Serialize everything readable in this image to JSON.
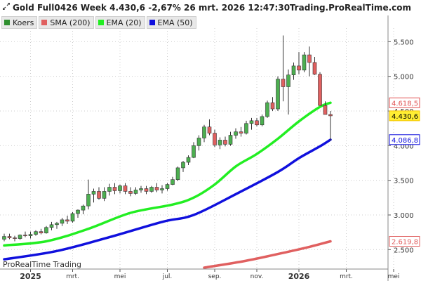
{
  "header": {
    "title": "Gold Full0426 Week 4.430,6 -2,67% 26 mrt. 2026 12:47:30",
    "site": "Trading.ProRealTime.com"
  },
  "legend": [
    {
      "label": "Koers",
      "color": "#2f8f2f"
    },
    {
      "label": "SMA (200)",
      "color": "#e06060"
    },
    {
      "label": "EMA (20)",
      "color": "#22ee22"
    },
    {
      "label": "EMA (50)",
      "color": "#1010dd"
    }
  ],
  "watermark": "ProRealTime Trading",
  "chart_data": {
    "type": "candlestick",
    "symbol": "Gold Full0426",
    "timeframe": "Week",
    "last_price": 4430.6,
    "change_pct": -2.67,
    "y_ticks": [
      2500,
      3000,
      3500,
      4000,
      4500,
      5000,
      5500
    ],
    "y_tick_labels": [
      "2.500",
      "3.000",
      "3.500",
      "4.000",
      "4.500",
      "5.000",
      "5.500"
    ],
    "x_labels": [
      {
        "week": 5,
        "text": "2025",
        "year": true
      },
      {
        "week": 13,
        "text": "mrt.",
        "year": false
      },
      {
        "week": 22,
        "text": "mei",
        "year": false
      },
      {
        "week": 31,
        "text": "jul.",
        "year": false
      },
      {
        "week": 40,
        "text": "sep.",
        "year": false
      },
      {
        "week": 48,
        "text": "nov.",
        "year": false
      },
      {
        "week": 56,
        "text": "2026",
        "year": true
      },
      {
        "week": 65,
        "text": "mrt.",
        "year": false
      },
      {
        "week": 74,
        "text": "mei",
        "year": false
      }
    ],
    "price_labels": [
      {
        "text": "4.618,5",
        "value": 4618.5,
        "color": "#e05050",
        "bg": "#ffffff",
        "text_color": "#e05050"
      },
      {
        "text": "4.430,6",
        "value": 4430.6,
        "color": "#f5c400",
        "bg": "#ffee33",
        "text_color": "#000000"
      },
      {
        "text": "4.086,8",
        "value": 4086.8,
        "color": "#1010dd",
        "bg": "#ffffff",
        "text_color": "#1010dd"
      },
      {
        "text": "2.619,8",
        "value": 2619.8,
        "color": "#e06060",
        "bg": "#ffffff",
        "text_color": "#e06060"
      }
    ],
    "candles": [
      [
        2650,
        2730,
        2620,
        2690
      ],
      [
        2690,
        2730,
        2650,
        2670
      ],
      [
        2670,
        2700,
        2620,
        2660
      ],
      [
        2660,
        2720,
        2640,
        2710
      ],
      [
        2710,
        2760,
        2680,
        2700
      ],
      [
        2700,
        2760,
        2660,
        2720
      ],
      [
        2720,
        2780,
        2700,
        2760
      ],
      [
        2760,
        2800,
        2720,
        2740
      ],
      [
        2740,
        2840,
        2730,
        2820
      ],
      [
        2820,
        2900,
        2780,
        2860
      ],
      [
        2860,
        2900,
        2800,
        2880
      ],
      [
        2880,
        2960,
        2840,
        2930
      ],
      [
        2930,
        2990,
        2870,
        2910
      ],
      [
        2910,
        3040,
        2890,
        3020
      ],
      [
        3020,
        3080,
        2960,
        3070
      ],
      [
        3070,
        3150,
        3010,
        3130
      ],
      [
        3130,
        3510,
        3080,
        3300
      ],
      [
        3300,
        3380,
        3180,
        3340
      ],
      [
        3340,
        3400,
        3220,
        3240
      ],
      [
        3240,
        3400,
        3200,
        3340
      ],
      [
        3340,
        3450,
        3280,
        3400
      ],
      [
        3400,
        3460,
        3300,
        3350
      ],
      [
        3350,
        3440,
        3310,
        3420
      ],
      [
        3420,
        3460,
        3300,
        3340
      ],
      [
        3340,
        3400,
        3270,
        3310
      ],
      [
        3310,
        3400,
        3290,
        3360
      ],
      [
        3360,
        3420,
        3320,
        3380
      ],
      [
        3380,
        3420,
        3300,
        3340
      ],
      [
        3340,
        3420,
        3320,
        3400
      ],
      [
        3400,
        3460,
        3330,
        3360
      ],
      [
        3360,
        3430,
        3310,
        3380
      ],
      [
        3380,
        3460,
        3350,
        3440
      ],
      [
        3440,
        3550,
        3430,
        3510
      ],
      [
        3510,
        3700,
        3490,
        3680
      ],
      [
        3680,
        3780,
        3620,
        3760
      ],
      [
        3760,
        3860,
        3720,
        3830
      ],
      [
        3830,
        4050,
        3820,
        4000
      ],
      [
        4000,
        4150,
        3930,
        4110
      ],
      [
        4110,
        4300,
        4050,
        4270
      ],
      [
        4270,
        4380,
        4150,
        4180
      ],
      [
        4180,
        4230,
        3980,
        4010
      ],
      [
        4010,
        4120,
        3950,
        4080
      ],
      [
        4080,
        4130,
        3990,
        4020
      ],
      [
        4020,
        4200,
        4000,
        4150
      ],
      [
        4150,
        4250,
        4100,
        4200
      ],
      [
        4200,
        4270,
        4130,
        4180
      ],
      [
        4180,
        4360,
        4160,
        4320
      ],
      [
        4320,
        4400,
        4230,
        4360
      ],
      [
        4360,
        4400,
        4280,
        4300
      ],
      [
        4300,
        4450,
        4280,
        4420
      ],
      [
        4420,
        4650,
        4400,
        4620
      ],
      [
        4620,
        4700,
        4500,
        4530
      ],
      [
        4530,
        5000,
        4500,
        4960
      ],
      [
        4960,
        5590,
        4640,
        4850
      ],
      [
        4850,
        5100,
        4450,
        5020
      ],
      [
        5020,
        5200,
        4950,
        5150
      ],
      [
        5150,
        5350,
        5030,
        5090
      ],
      [
        5090,
        5350,
        5060,
        5310
      ],
      [
        5310,
        5430,
        5000,
        5200
      ],
      [
        5200,
        5280,
        5020,
        5030
      ],
      [
        5030,
        5060,
        4580,
        4580
      ],
      [
        4580,
        4640,
        4450,
        4450
      ],
      [
        4450,
        4500,
        4070,
        4430
      ]
    ],
    "series": [
      {
        "name": "EMA (20)",
        "color": "#22ee22",
        "points": [
          [
            0,
            2560
          ],
          [
            8,
            2620
          ],
          [
            16,
            2800
          ],
          [
            24,
            3030
          ],
          [
            32,
            3150
          ],
          [
            36,
            3250
          ],
          [
            40,
            3440
          ],
          [
            44,
            3700
          ],
          [
            48,
            3880
          ],
          [
            52,
            4100
          ],
          [
            56,
            4350
          ],
          [
            60,
            4560
          ],
          [
            62,
            4618.5
          ]
        ]
      },
      {
        "name": "EMA (50)",
        "color": "#1010dd",
        "points": [
          [
            0,
            2360
          ],
          [
            10,
            2480
          ],
          [
            20,
            2680
          ],
          [
            30,
            2900
          ],
          [
            36,
            3000
          ],
          [
            44,
            3300
          ],
          [
            52,
            3620
          ],
          [
            56,
            3820
          ],
          [
            60,
            3990
          ],
          [
            62,
            4086.8
          ]
        ]
      },
      {
        "name": "SMA (200)",
        "color": "#e06060",
        "points": [
          [
            38,
            2240
          ],
          [
            46,
            2340
          ],
          [
            54,
            2470
          ],
          [
            58,
            2540
          ],
          [
            62,
            2619.8
          ]
        ]
      }
    ],
    "ylim": [
      2250,
      5800
    ]
  }
}
